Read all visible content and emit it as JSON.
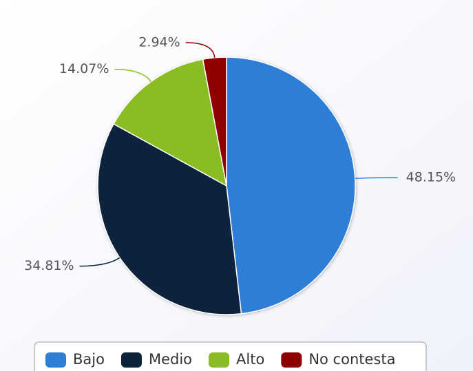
{
  "chart_data": {
    "type": "pie",
    "categories": [
      "Bajo",
      "Medio",
      "Alto",
      "No contesta"
    ],
    "values": [
      48.15,
      34.81,
      14.07,
      2.94
    ],
    "value_labels": [
      "48.15%",
      "34.81%",
      "14.07%",
      "2.94%"
    ],
    "colors": [
      "#2f7ed8",
      "#0d233a",
      "#8bbc21",
      "#910000"
    ],
    "legend": "bottom"
  }
}
